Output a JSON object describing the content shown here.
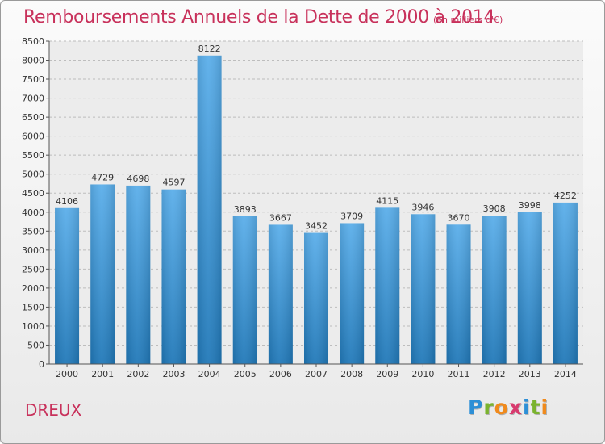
{
  "header": {
    "title": "Remboursements Annuels de la Dette de 2000 à 2014",
    "unit_note": "(en milliers d'€)"
  },
  "footer": {
    "city": "DREUX",
    "logo_letters": [
      "P",
      "r",
      "o",
      "x",
      "i",
      "t",
      "i"
    ],
    "logo_colors": [
      "#2d8fd6",
      "#7ab32e",
      "#f08a1c",
      "#d83a6e",
      "#2d8fd6",
      "#7ab32e",
      "#f08a1c"
    ]
  },
  "chart_data": {
    "type": "bar",
    "categories": [
      "2000",
      "2001",
      "2002",
      "2003",
      "2004",
      "2005",
      "2006",
      "2007",
      "2008",
      "2009",
      "2010",
      "2011",
      "2012",
      "2013",
      "2014"
    ],
    "values": [
      4106,
      4729,
      4698,
      4597,
      8122,
      3893,
      3667,
      3452,
      3709,
      4115,
      3946,
      3670,
      3908,
      3998,
      4252
    ],
    "data_labels": [
      "4106",
      "4729",
      "4698",
      "4597",
      "8122",
      "3893",
      "3667",
      "3452",
      "3709",
      "4115",
      "3946",
      "3670",
      "3908",
      "3998",
      "4252"
    ],
    "ylim": [
      0,
      8500
    ],
    "yticks": [
      "0",
      "500",
      "1000",
      "1500",
      "2000",
      "2500",
      "3000",
      "3500",
      "4000",
      "4500",
      "5000",
      "5500",
      "6000",
      "6500",
      "7000",
      "7500",
      "8000",
      "8500"
    ],
    "grid": true,
    "bar_color_top": "#5aaeea",
    "bar_color_bottom": "#2078b8"
  }
}
